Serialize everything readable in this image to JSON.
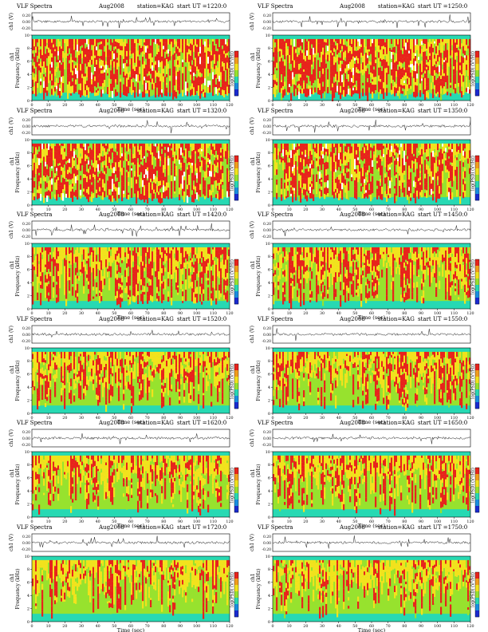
{
  "figure": {
    "title_label": "VLF Spectra",
    "date": "Aug2008",
    "station": "station=KAG"
  },
  "colorbar_label": "log(PSD) (V²/Hz)",
  "colors": {
    "hot": "#e8231c",
    "warm": "#f2e21d",
    "mid": "#97e22e",
    "cool": "#27d9b3",
    "bg_line": "#333333"
  },
  "chart_data": [
    {
      "type": "heatmap",
      "header": "start  UT  =1220:0",
      "intensity": 0.85,
      "xlabel": "Time  (sec)",
      "ylabel": "Frequency  (kHz)",
      "ylabel_top": "ch1 (V)",
      "xlim": [
        0,
        120
      ],
      "ylim": [
        0,
        10
      ],
      "x_ticks": [
        0,
        10,
        20,
        30,
        40,
        50,
        60,
        70,
        80,
        90,
        100,
        110,
        120
      ],
      "y_ticks": [
        0,
        2,
        4,
        6,
        8,
        10
      ],
      "ch1_ticks": [
        "0.20",
        "0.00",
        "-0.20"
      ]
    },
    {
      "type": "heatmap",
      "header": "start  UT  =1250:0",
      "intensity": 0.85,
      "xlabel": "Time  (sec)",
      "ylabel": "Frequency  (kHz)",
      "ylabel_top": "ch1 (V)",
      "xlim": [
        0,
        120
      ],
      "ylim": [
        0,
        10
      ],
      "x_ticks": [
        0,
        10,
        20,
        30,
        40,
        50,
        60,
        70,
        80,
        90,
        100,
        110,
        120
      ],
      "y_ticks": [
        0,
        2,
        4,
        6,
        8,
        10
      ],
      "ch1_ticks": [
        "0.20",
        "0.00",
        "-0.20"
      ]
    },
    {
      "type": "heatmap",
      "header": "start  UT  =1320:0",
      "intensity": 0.75,
      "xlabel": "Time  (sec)",
      "ylabel": "Frequency  (kHz)",
      "ylabel_top": "ch1 (V)",
      "xlim": [
        0,
        120
      ],
      "ylim": [
        0,
        10
      ],
      "x_ticks": [
        0,
        10,
        20,
        30,
        40,
        50,
        60,
        70,
        80,
        90,
        100,
        110,
        120
      ],
      "y_ticks": [
        0,
        2,
        4,
        6,
        8,
        10
      ],
      "ch1_ticks": [
        "0.20",
        "0.00",
        "-0.20"
      ]
    },
    {
      "type": "heatmap",
      "header": "start  UT  =1350:0",
      "intensity": 0.72,
      "xlabel": "Time  (sec)",
      "ylabel": "Frequency  (kHz)",
      "ylabel_top": "ch1 (V)",
      "xlim": [
        0,
        120
      ],
      "ylim": [
        0,
        10
      ],
      "x_ticks": [
        0,
        10,
        20,
        30,
        40,
        50,
        60,
        70,
        80,
        90,
        100,
        110,
        120
      ],
      "y_ticks": [
        0,
        2,
        4,
        6,
        8,
        10
      ],
      "ch1_ticks": [
        "0.20",
        "0.00",
        "-0.20"
      ]
    },
    {
      "type": "heatmap",
      "header": "start  UT  =1420:0",
      "intensity": 0.6,
      "xlabel": "Time  (sec)",
      "ylabel": "Frequency  (kHz)",
      "ylabel_top": "ch1 (V)",
      "xlim": [
        0,
        120
      ],
      "ylim": [
        0,
        10
      ],
      "x_ticks": [
        0,
        10,
        20,
        30,
        40,
        50,
        60,
        70,
        80,
        90,
        100,
        110,
        120
      ],
      "y_ticks": [
        0,
        2,
        4,
        6,
        8,
        10
      ],
      "ch1_ticks": [
        "0.20",
        "0.00",
        "-0.20"
      ]
    },
    {
      "type": "heatmap",
      "header": "start  UT  =1450:0",
      "intensity": 0.5,
      "xlabel": "Time  (sec)",
      "ylabel": "Frequency  (kHz)",
      "ylabel_top": "ch1 (V)",
      "xlim": [
        0,
        120
      ],
      "ylim": [
        0,
        10
      ],
      "x_ticks": [
        0,
        10,
        20,
        30,
        40,
        50,
        60,
        70,
        80,
        90,
        100,
        110,
        120
      ],
      "y_ticks": [
        0,
        2,
        4,
        6,
        8,
        10
      ],
      "ch1_ticks": [
        "0.20",
        "0.00",
        "-0.20"
      ]
    },
    {
      "type": "heatmap",
      "header": "start  UT  =1520:0",
      "intensity": 0.4,
      "xlabel": "Time  (sec)",
      "ylabel": "Frequency  (kHz)",
      "ylabel_top": "ch1 (V)",
      "xlim": [
        0,
        120
      ],
      "ylim": [
        0,
        10
      ],
      "x_ticks": [
        0,
        10,
        20,
        30,
        40,
        50,
        60,
        70,
        80,
        90,
        100,
        110,
        120
      ],
      "y_ticks": [
        0,
        2,
        4,
        6,
        8,
        10
      ],
      "ch1_ticks": [
        "0.20",
        "0.00",
        "-0.20"
      ]
    },
    {
      "type": "heatmap",
      "header": "start  UT  =1550:0",
      "intensity": 0.4,
      "xlabel": "Time  (sec)",
      "ylabel": "Frequency  (kHz)",
      "ylabel_top": "ch1 (V)",
      "xlim": [
        0,
        120
      ],
      "ylim": [
        0,
        10
      ],
      "x_ticks": [
        0,
        10,
        20,
        30,
        40,
        50,
        60,
        70,
        80,
        90,
        100,
        110,
        120
      ],
      "y_ticks": [
        0,
        2,
        4,
        6,
        8,
        10
      ],
      "ch1_ticks": [
        "0.20",
        "0.00",
        "-0.20"
      ]
    },
    {
      "type": "heatmap",
      "header": "start  UT  =1620:0",
      "intensity": 0.32,
      "xlabel": "Time  (sec)",
      "ylabel": "Frequency  (kHz)",
      "ylabel_top": "ch1 (V)",
      "xlim": [
        0,
        120
      ],
      "ylim": [
        0,
        10
      ],
      "x_ticks": [
        0,
        10,
        20,
        30,
        40,
        50,
        60,
        70,
        80,
        90,
        100,
        110,
        120
      ],
      "y_ticks": [
        0,
        2,
        4,
        6,
        8,
        10
      ],
      "ch1_ticks": [
        "0.20",
        "0.00",
        "-0.20"
      ]
    },
    {
      "type": "heatmap",
      "header": "start  UT  =1650:0",
      "intensity": 0.32,
      "xlabel": "Time  (sec)",
      "ylabel": "Frequency  (kHz)",
      "ylabel_top": "ch1 (V)",
      "xlim": [
        0,
        120
      ],
      "ylim": [
        0,
        10
      ],
      "x_ticks": [
        0,
        10,
        20,
        30,
        40,
        50,
        60,
        70,
        80,
        90,
        100,
        110,
        120
      ],
      "y_ticks": [
        0,
        2,
        4,
        6,
        8,
        10
      ],
      "ch1_ticks": [
        "0.20",
        "0.00",
        "-0.20"
      ]
    },
    {
      "type": "heatmap",
      "header": "start  UT  =1720:0",
      "intensity": 0.3,
      "xlabel": "Time  (sec)",
      "ylabel": "Frequency  (kHz)",
      "ylabel_top": "ch1 (V)",
      "xlim": [
        0,
        120
      ],
      "ylim": [
        0,
        10
      ],
      "x_ticks": [
        0,
        10,
        20,
        30,
        40,
        50,
        60,
        70,
        80,
        90,
        100,
        110,
        120
      ],
      "y_ticks": [
        0,
        2,
        4,
        6,
        8,
        10
      ],
      "ch1_ticks": [
        "0.20",
        "0.00",
        "-0.20"
      ]
    },
    {
      "type": "heatmap",
      "header": "start  UT  =1750:0",
      "intensity": 0.28,
      "xlabel": "Time  (sec)",
      "ylabel": "Frequency  (kHz)",
      "ylabel_top": "ch1 (V)",
      "xlim": [
        0,
        120
      ],
      "ylim": [
        0,
        10
      ],
      "x_ticks": [
        0,
        10,
        20,
        30,
        40,
        50,
        60,
        70,
        80,
        90,
        100,
        110,
        120
      ],
      "y_ticks": [
        0,
        2,
        4,
        6,
        8,
        10
      ],
      "ch1_ticks": [
        "0.20",
        "0.00",
        "-0.20"
      ]
    }
  ]
}
